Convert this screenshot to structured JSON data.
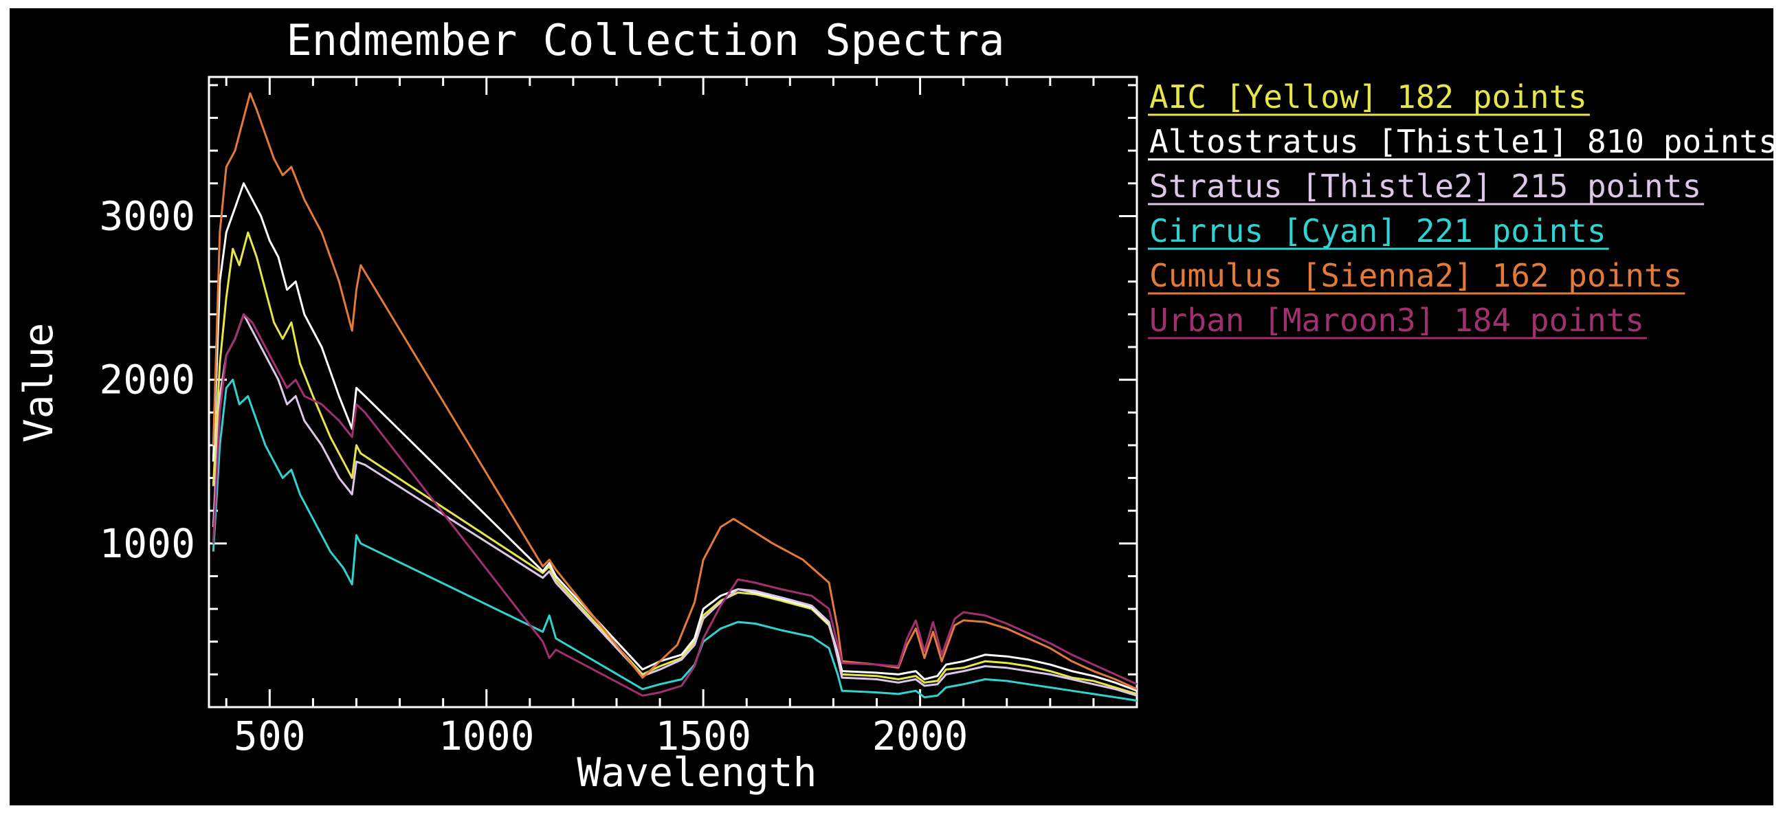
{
  "chart_data": {
    "type": "line",
    "title": "Endmember Collection Spectra",
    "xlabel": "Wavelength",
    "ylabel": "Value",
    "xlim": [
      360,
      2500
    ],
    "ylim": [
      0,
      3850
    ],
    "xticks": [
      500,
      1000,
      1500,
      2000
    ],
    "yticks": [
      1000,
      2000,
      3000
    ],
    "grid": false,
    "legend_position": "right-top",
    "series": [
      {
        "name": "AIC [Yellow] 182 points",
        "color": "#e6e64a",
        "points": [
          [
            370,
            1350
          ],
          [
            385,
            2100
          ],
          [
            400,
            2500
          ],
          [
            415,
            2800
          ],
          [
            430,
            2700
          ],
          [
            450,
            2900
          ],
          [
            470,
            2750
          ],
          [
            490,
            2550
          ],
          [
            510,
            2350
          ],
          [
            530,
            2250
          ],
          [
            550,
            2350
          ],
          [
            570,
            2100
          ],
          [
            600,
            1900
          ],
          [
            640,
            1650
          ],
          [
            670,
            1500
          ],
          [
            690,
            1400
          ],
          [
            700,
            1600
          ],
          [
            710,
            1550
          ],
          [
            1130,
            820
          ],
          [
            1145,
            860
          ],
          [
            1160,
            780
          ],
          [
            1360,
            200
          ],
          [
            1400,
            250
          ],
          [
            1450,
            300
          ],
          [
            1480,
            400
          ],
          [
            1500,
            560
          ],
          [
            1540,
            650
          ],
          [
            1580,
            700
          ],
          [
            1620,
            690
          ],
          [
            1680,
            650
          ],
          [
            1750,
            600
          ],
          [
            1790,
            500
          ],
          [
            1810,
            320
          ],
          [
            1820,
            200
          ],
          [
            1900,
            190
          ],
          [
            1950,
            170
          ],
          [
            1990,
            190
          ],
          [
            2010,
            150
          ],
          [
            2040,
            160
          ],
          [
            2060,
            230
          ],
          [
            2100,
            240
          ],
          [
            2150,
            280
          ],
          [
            2200,
            270
          ],
          [
            2250,
            250
          ],
          [
            2300,
            220
          ],
          [
            2350,
            180
          ],
          [
            2400,
            160
          ],
          [
            2450,
            120
          ],
          [
            2500,
            80
          ]
        ]
      },
      {
        "name": "Altostratus [Thistle1] 810 points",
        "color": "#ffffff",
        "points": [
          [
            370,
            1500
          ],
          [
            385,
            2600
          ],
          [
            400,
            2900
          ],
          [
            420,
            3050
          ],
          [
            440,
            3200
          ],
          [
            460,
            3100
          ],
          [
            480,
            3000
          ],
          [
            500,
            2850
          ],
          [
            520,
            2750
          ],
          [
            540,
            2550
          ],
          [
            560,
            2600
          ],
          [
            580,
            2400
          ],
          [
            620,
            2200
          ],
          [
            660,
            1900
          ],
          [
            690,
            1700
          ],
          [
            700,
            1950
          ],
          [
            720,
            1900
          ],
          [
            1130,
            830
          ],
          [
            1145,
            880
          ],
          [
            1160,
            800
          ],
          [
            1360,
            230
          ],
          [
            1400,
            280
          ],
          [
            1450,
            320
          ],
          [
            1480,
            420
          ],
          [
            1500,
            600
          ],
          [
            1540,
            680
          ],
          [
            1580,
            720
          ],
          [
            1620,
            700
          ],
          [
            1680,
            660
          ],
          [
            1750,
            610
          ],
          [
            1790,
            510
          ],
          [
            1810,
            330
          ],
          [
            1820,
            220
          ],
          [
            1900,
            210
          ],
          [
            1950,
            200
          ],
          [
            1990,
            220
          ],
          [
            2010,
            170
          ],
          [
            2040,
            190
          ],
          [
            2060,
            260
          ],
          [
            2100,
            280
          ],
          [
            2150,
            320
          ],
          [
            2200,
            310
          ],
          [
            2250,
            290
          ],
          [
            2300,
            260
          ],
          [
            2350,
            220
          ],
          [
            2400,
            190
          ],
          [
            2450,
            150
          ],
          [
            2500,
            100
          ]
        ]
      },
      {
        "name": "Stratus [Thistle2] 215 points",
        "color": "#dcc8e6",
        "points": [
          [
            370,
            1100
          ],
          [
            385,
            1900
          ],
          [
            400,
            2150
          ],
          [
            420,
            2250
          ],
          [
            440,
            2400
          ],
          [
            460,
            2300
          ],
          [
            480,
            2200
          ],
          [
            500,
            2100
          ],
          [
            520,
            2000
          ],
          [
            540,
            1850
          ],
          [
            560,
            1900
          ],
          [
            580,
            1750
          ],
          [
            620,
            1600
          ],
          [
            660,
            1400
          ],
          [
            690,
            1300
          ],
          [
            700,
            1500
          ],
          [
            720,
            1480
          ],
          [
            1130,
            790
          ],
          [
            1145,
            830
          ],
          [
            1160,
            760
          ],
          [
            1360,
            190
          ],
          [
            1400,
            230
          ],
          [
            1450,
            290
          ],
          [
            1480,
            380
          ],
          [
            1500,
            540
          ],
          [
            1540,
            640
          ],
          [
            1580,
            720
          ],
          [
            1620,
            710
          ],
          [
            1680,
            670
          ],
          [
            1750,
            620
          ],
          [
            1790,
            520
          ],
          [
            1810,
            300
          ],
          [
            1820,
            180
          ],
          [
            1900,
            170
          ],
          [
            1950,
            150
          ],
          [
            1990,
            170
          ],
          [
            2010,
            130
          ],
          [
            2040,
            140
          ],
          [
            2060,
            200
          ],
          [
            2100,
            220
          ],
          [
            2150,
            250
          ],
          [
            2200,
            240
          ],
          [
            2250,
            220
          ],
          [
            2300,
            200
          ],
          [
            2350,
            170
          ],
          [
            2400,
            140
          ],
          [
            2450,
            110
          ],
          [
            2500,
            70
          ]
        ]
      },
      {
        "name": "Cirrus [Cyan] 221 points",
        "color": "#30d2d2",
        "points": [
          [
            370,
            950
          ],
          [
            385,
            1600
          ],
          [
            400,
            1950
          ],
          [
            415,
            2000
          ],
          [
            430,
            1850
          ],
          [
            450,
            1900
          ],
          [
            470,
            1750
          ],
          [
            490,
            1600
          ],
          [
            510,
            1500
          ],
          [
            530,
            1400
          ],
          [
            550,
            1450
          ],
          [
            570,
            1300
          ],
          [
            600,
            1150
          ],
          [
            640,
            950
          ],
          [
            670,
            850
          ],
          [
            690,
            750
          ],
          [
            700,
            1050
          ],
          [
            710,
            1000
          ],
          [
            1130,
            460
          ],
          [
            1145,
            560
          ],
          [
            1160,
            420
          ],
          [
            1360,
            110
          ],
          [
            1400,
            140
          ],
          [
            1450,
            170
          ],
          [
            1480,
            260
          ],
          [
            1500,
            400
          ],
          [
            1540,
            480
          ],
          [
            1580,
            520
          ],
          [
            1620,
            510
          ],
          [
            1680,
            470
          ],
          [
            1750,
            430
          ],
          [
            1790,
            360
          ],
          [
            1810,
            200
          ],
          [
            1820,
            100
          ],
          [
            1900,
            90
          ],
          [
            1950,
            80
          ],
          [
            1990,
            100
          ],
          [
            2010,
            60
          ],
          [
            2040,
            70
          ],
          [
            2060,
            120
          ],
          [
            2100,
            140
          ],
          [
            2150,
            170
          ],
          [
            2200,
            160
          ],
          [
            2250,
            140
          ],
          [
            2300,
            120
          ],
          [
            2350,
            100
          ],
          [
            2400,
            80
          ],
          [
            2450,
            60
          ],
          [
            2500,
            40
          ]
        ]
      },
      {
        "name": "Cumulus [Sienna2] 162 points",
        "color": "#e27a3a",
        "points": [
          [
            370,
            1600
          ],
          [
            385,
            2900
          ],
          [
            400,
            3300
          ],
          [
            420,
            3400
          ],
          [
            440,
            3600
          ],
          [
            455,
            3750
          ],
          [
            470,
            3650
          ],
          [
            490,
            3500
          ],
          [
            510,
            3350
          ],
          [
            530,
            3250
          ],
          [
            550,
            3300
          ],
          [
            580,
            3100
          ],
          [
            620,
            2900
          ],
          [
            660,
            2600
          ],
          [
            680,
            2400
          ],
          [
            690,
            2300
          ],
          [
            700,
            2550
          ],
          [
            710,
            2700
          ],
          [
            1130,
            860
          ],
          [
            1145,
            900
          ],
          [
            1160,
            840
          ],
          [
            1360,
            180
          ],
          [
            1400,
            280
          ],
          [
            1440,
            380
          ],
          [
            1480,
            640
          ],
          [
            1500,
            900
          ],
          [
            1540,
            1100
          ],
          [
            1570,
            1150
          ],
          [
            1600,
            1100
          ],
          [
            1660,
            1000
          ],
          [
            1730,
            900
          ],
          [
            1790,
            760
          ],
          [
            1810,
            480
          ],
          [
            1820,
            280
          ],
          [
            1900,
            260
          ],
          [
            1950,
            240
          ],
          [
            1970,
            380
          ],
          [
            1990,
            480
          ],
          [
            2010,
            300
          ],
          [
            2030,
            460
          ],
          [
            2050,
            280
          ],
          [
            2080,
            500
          ],
          [
            2100,
            530
          ],
          [
            2150,
            520
          ],
          [
            2200,
            480
          ],
          [
            2250,
            420
          ],
          [
            2300,
            360
          ],
          [
            2350,
            280
          ],
          [
            2400,
            220
          ],
          [
            2450,
            170
          ],
          [
            2500,
            110
          ]
        ]
      },
      {
        "name": "Urban [Maroon3] 184 points",
        "color": "#a0306e",
        "points": [
          [
            370,
            1000
          ],
          [
            385,
            1800
          ],
          [
            400,
            2150
          ],
          [
            420,
            2250
          ],
          [
            440,
            2400
          ],
          [
            460,
            2350
          ],
          [
            480,
            2250
          ],
          [
            500,
            2150
          ],
          [
            520,
            2050
          ],
          [
            540,
            1950
          ],
          [
            560,
            2000
          ],
          [
            580,
            1900
          ],
          [
            620,
            1850
          ],
          [
            660,
            1750
          ],
          [
            690,
            1650
          ],
          [
            700,
            1850
          ],
          [
            720,
            1800
          ],
          [
            1130,
            400
          ],
          [
            1145,
            300
          ],
          [
            1160,
            350
          ],
          [
            1360,
            70
          ],
          [
            1400,
            90
          ],
          [
            1450,
            130
          ],
          [
            1480,
            250
          ],
          [
            1500,
            420
          ],
          [
            1540,
            620
          ],
          [
            1580,
            780
          ],
          [
            1620,
            760
          ],
          [
            1680,
            720
          ],
          [
            1750,
            680
          ],
          [
            1790,
            600
          ],
          [
            1810,
            380
          ],
          [
            1820,
            270
          ],
          [
            1900,
            260
          ],
          [
            1950,
            250
          ],
          [
            1970,
            420
          ],
          [
            1990,
            530
          ],
          [
            2010,
            340
          ],
          [
            2030,
            520
          ],
          [
            2050,
            320
          ],
          [
            2080,
            540
          ],
          [
            2100,
            580
          ],
          [
            2150,
            560
          ],
          [
            2200,
            510
          ],
          [
            2250,
            450
          ],
          [
            2300,
            390
          ],
          [
            2350,
            320
          ],
          [
            2400,
            260
          ],
          [
            2450,
            200
          ],
          [
            2500,
            140
          ]
        ]
      }
    ]
  }
}
